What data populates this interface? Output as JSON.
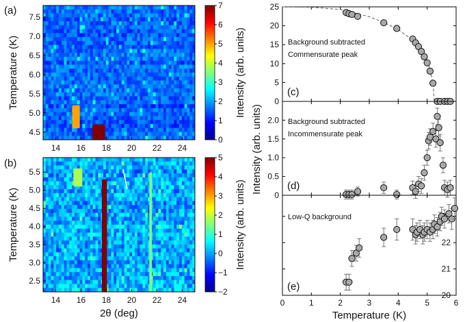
{
  "chart_data": [
    {
      "panel": "(a)",
      "type": "heatmap",
      "xlabel": "",
      "ylabel": "Temperature (K)",
      "xlim": [
        13,
        25
      ],
      "ylim": [
        4.3,
        7.8
      ],
      "xticks": [
        "14",
        "16",
        "18",
        "20",
        "22",
        "24"
      ],
      "yticks": [
        "4.5",
        "5.0",
        "5.5",
        "6.0",
        "6.5",
        "7.0",
        "7.5"
      ],
      "colorbar": {
        "label": "Intensity (arb. units)",
        "range": [
          0,
          7
        ],
        "ticks": [
          "0",
          "1",
          "2",
          "3",
          "4",
          "5",
          "6",
          "7"
        ]
      },
      "features": [
        {
          "x": [
            16.9,
            17.9
          ],
          "y": [
            4.3,
            4.7
          ],
          "intensity": 7
        },
        {
          "x": [
            15.3,
            15.9
          ],
          "y": [
            4.6,
            5.2
          ],
          "intensity": 5
        }
      ]
    },
    {
      "panel": "(b)",
      "type": "heatmap",
      "xlabel": "2θ  (deg)",
      "ylabel": "Temperature (K)",
      "xlim": [
        13,
        25
      ],
      "ylim": [
        2.2,
        5.9
      ],
      "xticks": [
        "14",
        "16",
        "18",
        "20",
        "22",
        "24"
      ],
      "yticks": [
        "2.5",
        "3.0",
        "3.5",
        "4.0",
        "4.5",
        "5.0",
        "5.5"
      ],
      "colorbar": {
        "label": "Intensity (arb. units)",
        "range": [
          -2,
          5
        ],
        "ticks": [
          "−2",
          "−1",
          "0",
          "1",
          "2",
          "3",
          "4",
          "5"
        ]
      },
      "features": [
        {
          "x": [
            17.65,
            18.05
          ],
          "y": [
            2.2,
            5.3
          ],
          "intensity": 5
        },
        {
          "x": [
            21.4,
            21.6
          ],
          "y": [
            2.2,
            5.5
          ],
          "intensity": 1.5
        },
        {
          "x": [
            15.4,
            16.1
          ],
          "y": [
            5.1,
            5.6
          ],
          "intensity": 1.8
        }
      ]
    },
    {
      "panel": "(c)",
      "type": "scatter",
      "annotation": [
        "Background subtracted",
        "Commensurate peak"
      ],
      "xlim": [
        0,
        6
      ],
      "ylim": [
        0,
        25
      ],
      "yticks": [
        "0",
        "5",
        "10",
        "15",
        "20",
        "25"
      ],
      "x": [
        2.2,
        2.3,
        2.4,
        2.6,
        3.5,
        3.95,
        4.5,
        4.6,
        4.7,
        4.8,
        4.9,
        5.0,
        5.1,
        5.2,
        5.35,
        5.45,
        5.6,
        5.7,
        5.8
      ],
      "y": [
        23.5,
        23.2,
        23.0,
        22.5,
        20.8,
        19.3,
        16.5,
        15.5,
        14.5,
        13.2,
        11.8,
        10.2,
        8.0,
        4.8,
        0.0,
        0.0,
        0.0,
        0.0,
        0.0
      ],
      "fit": {
        "x": [
          0,
          1,
          2,
          3,
          3.5,
          4,
          4.5,
          4.8,
          5.0,
          5.1,
          5.2,
          5.25
        ],
        "y": [
          25,
          24.9,
          24.3,
          22.4,
          20.9,
          19.0,
          16.2,
          13.7,
          10.8,
          8.4,
          4.8,
          0
        ]
      }
    },
    {
      "panel": "(d)",
      "type": "scatter",
      "annotation": [
        "Background subtracted",
        "Incommensurate peak"
      ],
      "ylabel": "Intensity (arb. units)",
      "xlim": [
        0,
        6
      ],
      "ylim": [
        0,
        2.5
      ],
      "yticks": [
        "0",
        "0.5",
        "1.0",
        "1.5",
        "2.0"
      ],
      "x": [
        2.2,
        2.3,
        2.4,
        2.6,
        3.5,
        3.95,
        4.5,
        4.6,
        4.7,
        4.8,
        4.9,
        5.0,
        5.05,
        5.1,
        5.2,
        5.3,
        5.35,
        5.4,
        5.45,
        5.55,
        5.6,
        5.7,
        5.8
      ],
      "y": [
        0.02,
        0.02,
        0.02,
        0.1,
        0.2,
        0.02,
        0.2,
        0.1,
        0.3,
        0.25,
        0.6,
        1.0,
        1.45,
        1.55,
        1.7,
        1.5,
        2.1,
        1.8,
        1.4,
        0.8,
        0.2,
        0.15,
        0.2
      ],
      "err": [
        0.12,
        0.12,
        0.12,
        0.12,
        0.15,
        0.12,
        0.18,
        0.18,
        0.2,
        0.2,
        0.2,
        0.2,
        0.22,
        0.22,
        0.22,
        0.22,
        0.22,
        0.22,
        0.22,
        0.2,
        0.2,
        0.2,
        0.2
      ]
    },
    {
      "panel": "(e)",
      "type": "scatter",
      "annotation": [
        "Low-Q background"
      ],
      "xlabel": "Temperature (K)",
      "xlim": [
        0,
        6
      ],
      "ylim": [
        20,
        23.8
      ],
      "xticks": [
        "0",
        "1",
        "2",
        "3",
        "4",
        "5",
        "6"
      ],
      "yticks": [
        "20",
        "21",
        "22",
        "23"
      ],
      "x": [
        2.2,
        2.3,
        2.4,
        2.55,
        2.65,
        3.5,
        3.95,
        4.5,
        4.6,
        4.65,
        4.75,
        4.85,
        4.9,
        5.0,
        5.1,
        5.2,
        5.25,
        5.35,
        5.45,
        5.5,
        5.6,
        5.75,
        5.85,
        5.95
      ],
      "y": [
        20.5,
        20.5,
        21.4,
        21.6,
        21.8,
        22.2,
        22.5,
        22.5,
        22.3,
        22.4,
        22.5,
        22.3,
        22.4,
        22.5,
        22.4,
        22.5,
        22.7,
        22.6,
        22.8,
        23.0,
        22.9,
        23.1,
        22.9,
        23.3
      ],
      "err": [
        0.3,
        0.3,
        0.3,
        0.3,
        0.35,
        0.35,
        0.4,
        0.4,
        0.35,
        0.35,
        0.35,
        0.35,
        0.35,
        0.35,
        0.35,
        0.35,
        0.35,
        0.35,
        0.35,
        0.35,
        0.35,
        0.35,
        0.4,
        0.4
      ]
    }
  ]
}
